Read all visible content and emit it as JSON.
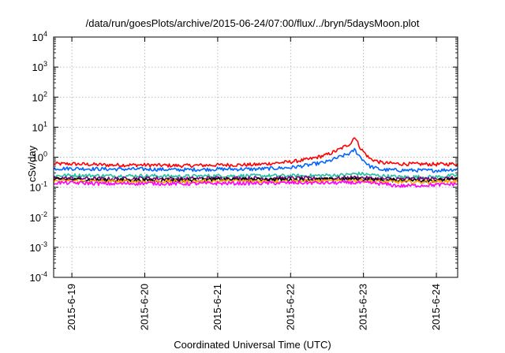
{
  "chart_data": {
    "type": "line",
    "title": "/data/run/goesPlots/archive/2015-06-24/07:00/flux/../bryn/5daysMoon.plot",
    "xlabel": "Coordinated Universal Time (UTC)",
    "ylabel": "cSv/day",
    "y_scale": "log",
    "ylim": [
      0.0001,
      10000
    ],
    "y_ticks": [
      {
        "exp": "4",
        "value": 10000
      },
      {
        "exp": "3",
        "value": 1000
      },
      {
        "exp": "2",
        "value": 100
      },
      {
        "exp": "1",
        "value": 10
      },
      {
        "exp": "0",
        "value": 1
      },
      {
        "exp": "-1",
        "value": 0.1
      },
      {
        "exp": "-2",
        "value": 0.01
      },
      {
        "exp": "-3",
        "value": 0.001
      },
      {
        "exp": "-4",
        "value": 0.0001
      }
    ],
    "xlim": [
      "2015-06-18 18:00",
      "2015-06-24 07:00"
    ],
    "x_ticks": [
      "2015-6-19",
      "2015-6-20",
      "2015-6-21",
      "2015-6-22",
      "2015-6-23",
      "2015-6-24"
    ],
    "grid": true,
    "x": [
      "2015-06-18 18:00",
      "2015-06-19 00:00",
      "2015-06-19 12:00",
      "2015-06-20 00:00",
      "2015-06-20 12:00",
      "2015-06-21 00:00",
      "2015-06-21 12:00",
      "2015-06-22 00:00",
      "2015-06-22 06:00",
      "2015-06-22 12:00",
      "2015-06-22 16:00",
      "2015-06-22 20:00",
      "2015-06-22 21:00",
      "2015-06-22 23:00",
      "2015-06-23 02:00",
      "2015-06-23 06:00",
      "2015-06-23 12:00",
      "2015-06-24 00:00",
      "2015-06-24 07:00"
    ],
    "series": [
      {
        "color": "#ff0000",
        "values": [
          0.6,
          0.6,
          0.55,
          0.55,
          0.52,
          0.55,
          0.56,
          0.7,
          0.85,
          1.2,
          1.8,
          3.0,
          5.0,
          2.0,
          0.9,
          0.65,
          0.6,
          0.58,
          0.6
        ]
      },
      {
        "color": "#0066ff",
        "values": [
          0.42,
          0.42,
          0.4,
          0.4,
          0.38,
          0.4,
          0.4,
          0.45,
          0.55,
          0.7,
          1.0,
          1.4,
          1.8,
          1.0,
          0.5,
          0.38,
          0.37,
          0.36,
          0.4
        ]
      },
      {
        "color": "#20c0a0",
        "values": [
          0.24,
          0.25,
          0.24,
          0.24,
          0.23,
          0.24,
          0.24,
          0.24,
          0.24,
          0.25,
          0.25,
          0.27,
          0.28,
          0.28,
          0.26,
          0.24,
          0.22,
          0.22,
          0.25
        ]
      },
      {
        "color": "#800080",
        "values": [
          0.2,
          0.2,
          0.19,
          0.2,
          0.19,
          0.2,
          0.2,
          0.2,
          0.2,
          0.2,
          0.2,
          0.21,
          0.21,
          0.21,
          0.2,
          0.19,
          0.19,
          0.19,
          0.2
        ]
      },
      {
        "color": "#000000",
        "values": [
          0.18,
          0.18,
          0.17,
          0.17,
          0.17,
          0.18,
          0.18,
          0.18,
          0.18,
          0.18,
          0.18,
          0.19,
          0.19,
          0.19,
          0.18,
          0.17,
          0.17,
          0.17,
          0.18
        ]
      },
      {
        "color": "#ffaa00",
        "values": [
          0.16,
          0.16,
          0.155,
          0.155,
          0.155,
          0.16,
          0.16,
          0.16,
          0.16,
          0.16,
          0.16,
          0.165,
          0.165,
          0.165,
          0.16,
          0.15,
          0.15,
          0.15,
          0.16
        ]
      },
      {
        "color": "#ff00ff",
        "values": [
          0.14,
          0.14,
          0.13,
          0.135,
          0.13,
          0.135,
          0.135,
          0.14,
          0.14,
          0.14,
          0.14,
          0.145,
          0.14,
          0.14,
          0.14,
          0.13,
          0.11,
          0.12,
          0.13
        ]
      }
    ]
  }
}
